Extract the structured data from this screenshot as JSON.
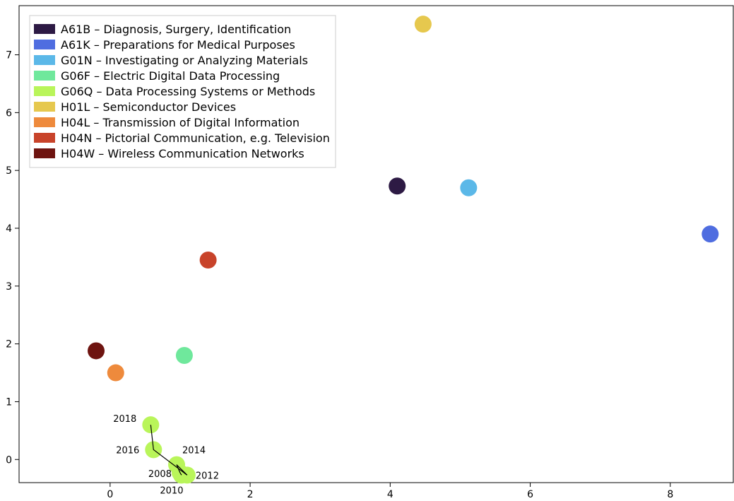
{
  "chart_data": {
    "type": "scatter",
    "title": "",
    "xlabel": "",
    "ylabel": "",
    "xlim": [
      -1.3,
      8.9
    ],
    "ylim": [
      -0.4,
      7.85
    ],
    "xticks": [
      0,
      2,
      4,
      6,
      8
    ],
    "yticks": [
      0,
      1,
      2,
      3,
      4,
      5,
      6,
      7
    ],
    "grid": false,
    "legend_position": "upper-left",
    "series": [
      {
        "name": "A61B – Diagnosis, Surgery, Identification",
        "color": "#2d1a44",
        "points": [
          {
            "x": 4.1,
            "y": 4.73
          }
        ]
      },
      {
        "name": "A61K – Preparations for Medical Purposes",
        "color": "#4f6de0",
        "points": [
          {
            "x": 8.57,
            "y": 3.9
          }
        ]
      },
      {
        "name": "G01N – Investigating or Analyzing Materials",
        "color": "#5bb8e8",
        "points": [
          {
            "x": 5.12,
            "y": 4.7
          }
        ]
      },
      {
        "name": "G06F – Electric Digital Data Processing",
        "color": "#6fe89c",
        "points": [
          {
            "x": 1.06,
            "y": 1.8
          }
        ]
      },
      {
        "name": "G06Q – Data Processing Systems or Methods",
        "color": "#b9f55a",
        "points": [
          {
            "x": 0.58,
            "y": 0.6,
            "label": "2018"
          },
          {
            "x": 0.62,
            "y": 0.17,
            "label": "2016"
          },
          {
            "x": 0.95,
            "y": -0.09,
            "label": "2014"
          },
          {
            "x": 1.0,
            "y": -0.23,
            "label": "2008"
          },
          {
            "x": 1.02,
            "y": -0.27,
            "label": "2010"
          },
          {
            "x": 1.1,
            "y": -0.27,
            "label": "2012"
          }
        ],
        "trajectory": [
          {
            "x": 0.58,
            "y": 0.6
          },
          {
            "x": 0.62,
            "y": 0.17
          },
          {
            "x": 1.1,
            "y": -0.27
          },
          {
            "x": 0.95,
            "y": -0.09
          },
          {
            "x": 1.0,
            "y": -0.23
          },
          {
            "x": 1.02,
            "y": -0.27
          }
        ]
      },
      {
        "name": "H01L – Semiconductor Devices",
        "color": "#e6c84e",
        "points": [
          {
            "x": 4.47,
            "y": 7.53
          }
        ]
      },
      {
        "name": "H04L – Transmission of Digital Information",
        "color": "#ee8a3c",
        "points": [
          {
            "x": 0.08,
            "y": 1.5
          }
        ]
      },
      {
        "name": "H04N – Pictorial Communication, e.g. Television",
        "color": "#c8432a",
        "points": [
          {
            "x": 1.4,
            "y": 3.45
          }
        ]
      },
      {
        "name": "H04W – Wireless Communication Networks",
        "color": "#6e1410",
        "points": [
          {
            "x": -0.2,
            "y": 1.88
          }
        ]
      }
    ]
  }
}
